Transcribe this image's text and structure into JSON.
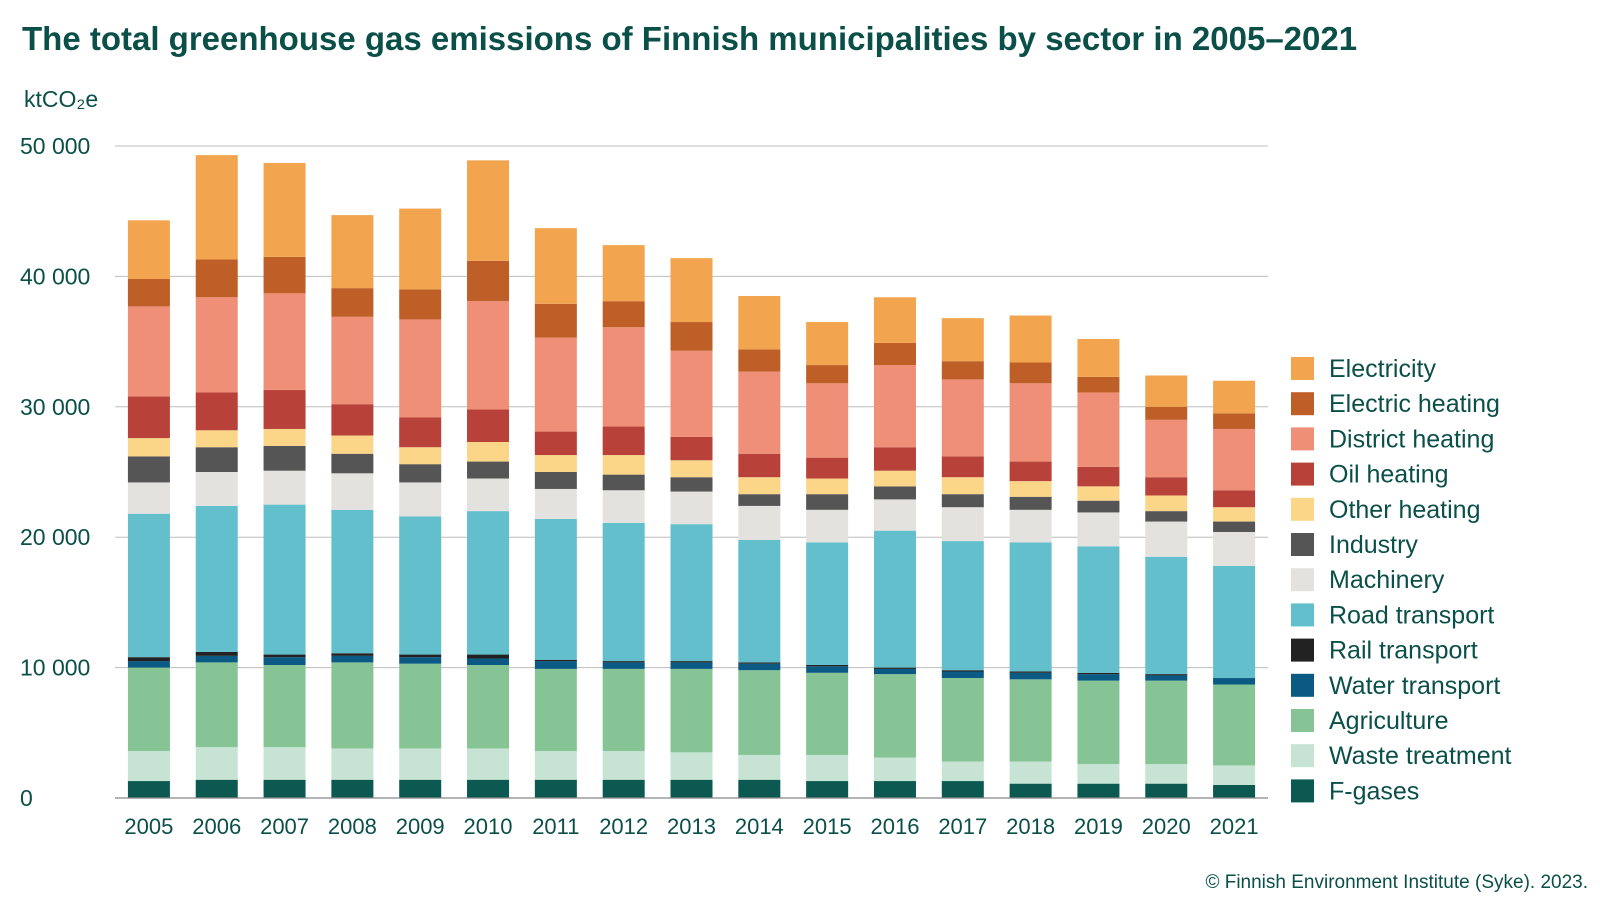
{
  "chart_data": {
    "type": "bar",
    "stacked": true,
    "title": "The total greenhouse gas emissions of Finnish municipalities by sector in 2005–2021",
    "ylabel": "ktCO₂e",
    "xlabel": "",
    "ylim": [
      0,
      50000
    ],
    "yticks": [
      0,
      10000,
      20000,
      30000,
      40000,
      50000
    ],
    "ytick_labels": [
      "0",
      "10 000",
      "20 000",
      "30 000",
      "40 000",
      "50 000"
    ],
    "grid": true,
    "legend_position": "right",
    "categories": [
      "2005",
      "2006",
      "2007",
      "2008",
      "2009",
      "2010",
      "2011",
      "2012",
      "2013",
      "2014",
      "2015",
      "2016",
      "2017",
      "2018",
      "2019",
      "2020",
      "2021"
    ],
    "series": [
      {
        "name": "F-gases",
        "color": "#0b5950",
        "values": [
          1300,
          1400,
          1400,
          1400,
          1400,
          1400,
          1400,
          1400,
          1400,
          1400,
          1300,
          1300,
          1300,
          1100,
          1100,
          1100,
          1000
        ]
      },
      {
        "name": "Waste treatment",
        "color": "#c6e3d3",
        "values": [
          2300,
          2500,
          2500,
          2400,
          2400,
          2400,
          2200,
          2200,
          2100,
          1900,
          2000,
          1800,
          1500,
          1700,
          1500,
          1500,
          1500
        ]
      },
      {
        "name": "Agriculture",
        "color": "#86c495",
        "values": [
          6400,
          6500,
          6300,
          6600,
          6500,
          6400,
          6300,
          6300,
          6400,
          6500,
          6300,
          6400,
          6400,
          6300,
          6400,
          6400,
          6200
        ]
      },
      {
        "name": "Water transport",
        "color": "#0b5a84",
        "values": [
          500,
          500,
          600,
          500,
          500,
          500,
          600,
          500,
          500,
          500,
          500,
          400,
          500,
          500,
          500,
          400,
          500
        ]
      },
      {
        "name": "Rail transport",
        "color": "#222222",
        "values": [
          300,
          300,
          200,
          200,
          200,
          300,
          100,
          100,
          100,
          100,
          100,
          100,
          100,
          100,
          100,
          100,
          0
        ]
      },
      {
        "name": "Road transport",
        "color": "#63bfcc",
        "values": [
          11000,
          11200,
          11500,
          11000,
          10600,
          11000,
          10800,
          10600,
          10500,
          9400,
          9400,
          10500,
          9900,
          9900,
          9700,
          9000,
          8600
        ]
      },
      {
        "name": "Machinery",
        "color": "#e4e2de",
        "values": [
          2400,
          2600,
          2600,
          2800,
          2600,
          2500,
          2300,
          2500,
          2500,
          2600,
          2500,
          2400,
          2600,
          2500,
          2600,
          2700,
          2600
        ]
      },
      {
        "name": "Industry",
        "color": "#555555",
        "values": [
          2000,
          1900,
          1900,
          1500,
          1400,
          1300,
          1300,
          1200,
          1100,
          900,
          1200,
          1000,
          1000,
          1000,
          900,
          800,
          800
        ]
      },
      {
        "name": "Other heating",
        "color": "#fbd588",
        "values": [
          1400,
          1300,
          1300,
          1400,
          1300,
          1500,
          1300,
          1500,
          1300,
          1300,
          1200,
          1200,
          1300,
          1200,
          1100,
          1200,
          1100
        ]
      },
      {
        "name": "Oil heating",
        "color": "#b8423a",
        "values": [
          3200,
          2900,
          3000,
          2400,
          2300,
          2500,
          1800,
          2200,
          1800,
          1800,
          1600,
          1800,
          1600,
          1500,
          1500,
          1400,
          1300
        ]
      },
      {
        "name": "District heating",
        "color": "#f08f78",
        "values": [
          6900,
          7300,
          7400,
          6700,
          7500,
          8300,
          7200,
          7600,
          6600,
          6300,
          5700,
          6300,
          5900,
          6000,
          5700,
          4400,
          4700
        ]
      },
      {
        "name": "Electric heating",
        "color": "#bf5f28",
        "values": [
          2100,
          2900,
          2800,
          2200,
          2300,
          3100,
          2600,
          2000,
          2200,
          1700,
          1400,
          1700,
          1400,
          1600,
          1200,
          1000,
          1200
        ]
      },
      {
        "name": "Electricity",
        "color": "#f2a54e",
        "values": [
          4500,
          8000,
          7200,
          5600,
          6200,
          7700,
          5800,
          4300,
          4900,
          4100,
          3300,
          3500,
          3300,
          3600,
          2900,
          2400,
          2500
        ]
      }
    ],
    "legend_order": [
      "Electricity",
      "Electric heating",
      "District heating",
      "Oil heating",
      "Other heating",
      "Industry",
      "Machinery",
      "Road transport",
      "Rail transport",
      "Water transport",
      "Agriculture",
      "Waste treatment",
      "F-gases"
    ],
    "source_note": "© Finnish Environment Institute (Syke). 2023."
  }
}
